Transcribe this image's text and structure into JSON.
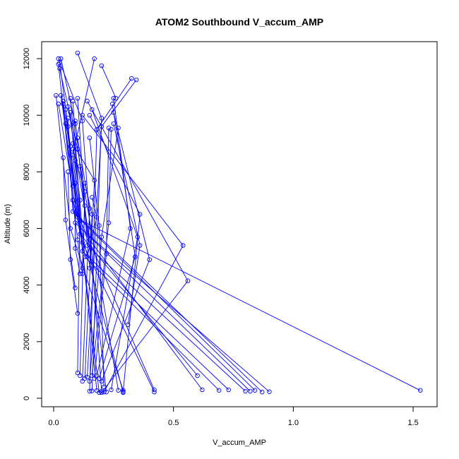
{
  "chart_data": {
    "type": "line",
    "title": "ATOM2 Southbound V_accum_AMP",
    "xlabel": "V_accum_AMP",
    "ylabel": "Altitude (m)",
    "xlim": [
      -0.05,
      1.6
    ],
    "ylim": [
      -300,
      12600
    ],
    "x_ticks": [
      {
        "value": 0,
        "label": "0.0"
      },
      {
        "value": 0.5,
        "label": "0.5"
      },
      {
        "value": 1.0,
        "label": "1.0"
      },
      {
        "value": 1.5,
        "label": "1.5"
      }
    ],
    "y_ticks": [
      {
        "value": 0,
        "label": "0"
      },
      {
        "value": 2000,
        "label": "2000"
      },
      {
        "value": 4000,
        "label": "4000"
      },
      {
        "value": 6000,
        "label": "6000"
      },
      {
        "value": 8000,
        "label": "8000"
      },
      {
        "value": 10000,
        "label": "10000"
      },
      {
        "value": 12000,
        "label": "12000"
      }
    ],
    "series_color": "#0000ff",
    "series": [
      {
        "x": [
          0.02,
          0.12,
          0.2
        ],
        "y": [
          12000,
          9800,
          250
        ]
      },
      {
        "x": [
          0.025,
          0.06,
          0.19
        ],
        "y": [
          11850,
          9600,
          200
        ]
      },
      {
        "x": [
          0.03,
          0.09,
          0.22
        ],
        "y": [
          12000,
          9700,
          220
        ]
      },
      {
        "x": [
          0.025,
          0.1,
          0.27
        ],
        "y": [
          11650,
          8800,
          280
        ]
      },
      {
        "x": [
          0.02,
          0.08,
          0.29
        ],
        "y": [
          11800,
          7000,
          200
        ]
      },
      {
        "x": [
          0.1,
          0.2,
          0.16
        ],
        "y": [
          12200,
          9900,
          260
        ]
      },
      {
        "x": [
          0.17,
          0.08,
          0.18
        ],
        "y": [
          12000,
          8600,
          270
        ]
      },
      {
        "x": [
          0.2,
          0.26
        ],
        "y": [
          11750,
          10600
        ]
      },
      {
        "x": [
          0.325,
          0.18,
          0.15
        ],
        "y": [
          11300,
          9500,
          250
        ]
      },
      {
        "x": [
          0.345,
          0.2,
          0.14
        ],
        "y": [
          11250,
          9600,
          750
        ]
      },
      {
        "x": [
          0.01,
          0.07,
          0.29
        ],
        "y": [
          10700,
          6000,
          280
        ]
      },
      {
        "x": [
          0.03,
          0.1,
          0.42
        ],
        "y": [
          10700,
          6500,
          300
        ]
      },
      {
        "x": [
          0.04,
          0.12,
          0.42
        ],
        "y": [
          10500,
          5500,
          220
        ]
      },
      {
        "x": [
          0.02,
          0.11,
          0.6
        ],
        "y": [
          10400,
          5800,
          800
        ]
      },
      {
        "x": [
          0.06,
          0.15,
          0.62
        ],
        "y": [
          10300,
          5600,
          300
        ]
      },
      {
        "x": [
          0.07,
          0.13,
          0.69
        ],
        "y": [
          10600,
          5000,
          280
        ]
      },
      {
        "x": [
          0.08,
          0.12,
          0.73
        ],
        "y": [
          10500,
          5200,
          300
        ]
      },
      {
        "x": [
          0.1,
          0.14,
          0.8
        ],
        "y": [
          10600,
          5400,
          250
        ]
      },
      {
        "x": [
          0.04,
          0.09,
          0.82
        ],
        "y": [
          10400,
          6200,
          250
        ]
      },
      {
        "x": [
          0.05,
          0.1,
          0.84
        ],
        "y": [
          10200,
          6400,
          280
        ]
      },
      {
        "x": [
          0.06,
          0.08,
          0.87
        ],
        "y": [
          9900,
          6600,
          220
        ]
      },
      {
        "x": [
          0.09,
          0.14,
          0.9
        ],
        "y": [
          9800,
          5800,
          230
        ]
      },
      {
        "x": [
          0.07,
          0.11,
          1.53
        ],
        "y": [
          10100,
          6300,
          280
        ]
      },
      {
        "x": [
          0.12,
          0.54,
          0.21
        ],
        "y": [
          10000,
          5400,
          220
        ]
      },
      {
        "x": [
          0.14,
          0.56,
          0.2
        ],
        "y": [
          10500,
          4150,
          200
        ]
      },
      {
        "x": [
          0.15,
          0.36,
          0.29
        ],
        "y": [
          10000,
          6500,
          230
        ]
      },
      {
        "x": [
          0.16,
          0.35,
          0.24
        ],
        "y": [
          10200,
          5700,
          300
        ]
      },
      {
        "x": [
          0.25,
          0.32,
          0.18
        ],
        "y": [
          10600,
          6000,
          800
        ]
      },
      {
        "x": [
          0.245,
          0.34,
          0.19
        ],
        "y": [
          10400,
          5000,
          700
        ]
      },
      {
        "x": [
          0.25,
          0.4,
          0.2
        ],
        "y": [
          10100,
          4900,
          600
        ]
      },
      {
        "x": [
          0.25,
          0.36,
          0.31
        ],
        "y": [
          9700,
          5400,
          2600
        ]
      },
      {
        "x": [
          0.24,
          0.23,
          0.16
        ],
        "y": [
          9500,
          6200,
          800
        ]
      },
      {
        "x": [
          0.23,
          0.22,
          0.17
        ],
        "y": [
          9550,
          5100,
          700
        ]
      },
      {
        "x": [
          0.27,
          0.2,
          0.15
        ],
        "y": [
          9550,
          5700,
          600
        ]
      },
      {
        "x": [
          0.15,
          0.19,
          0.21
        ],
        "y": [
          9200,
          6100,
          400
        ]
      },
      {
        "x": [
          0.08,
          0.17,
          0.13
        ],
        "y": [
          9000,
          7700,
          700
        ]
      },
      {
        "x": [
          0.1,
          0.15,
          0.12
        ],
        "y": [
          9200,
          6700,
          600
        ]
      },
      {
        "x": [
          0.08,
          0.13,
          0.11
        ],
        "y": [
          8800,
          7300,
          800
        ]
      },
      {
        "x": [
          0.09,
          0.11,
          0.1
        ],
        "y": [
          8400,
          7000,
          900
        ]
      },
      {
        "x": [
          0.04,
          0.05,
          0.09
        ],
        "y": [
          8500,
          6300,
          3900
        ]
      },
      {
        "x": [
          0.06,
          0.07,
          0.1
        ],
        "y": [
          8000,
          4900,
          3000
        ]
      },
      {
        "x": [
          0.09,
          0.09,
          0.11
        ],
        "y": [
          7600,
          5300,
          4400
        ]
      },
      {
        "x": [
          0.11,
          0.13,
          0.12
        ],
        "y": [
          8200,
          6800,
          4600
        ]
      },
      {
        "x": [
          0.08,
          0.1,
          0.12
        ],
        "y": [
          7000,
          5600,
          4400
        ]
      },
      {
        "x": [
          0.13,
          0.16,
          0.15
        ],
        "y": [
          7600,
          6500,
          4600
        ]
      },
      {
        "x": [
          0.16,
          0.18,
          0.14
        ],
        "y": [
          7100,
          6400,
          5000
        ]
      },
      {
        "x": [
          0.05,
          0.07,
          0.08
        ],
        "y": [
          9700,
          8900,
          7500
        ]
      }
    ]
  }
}
